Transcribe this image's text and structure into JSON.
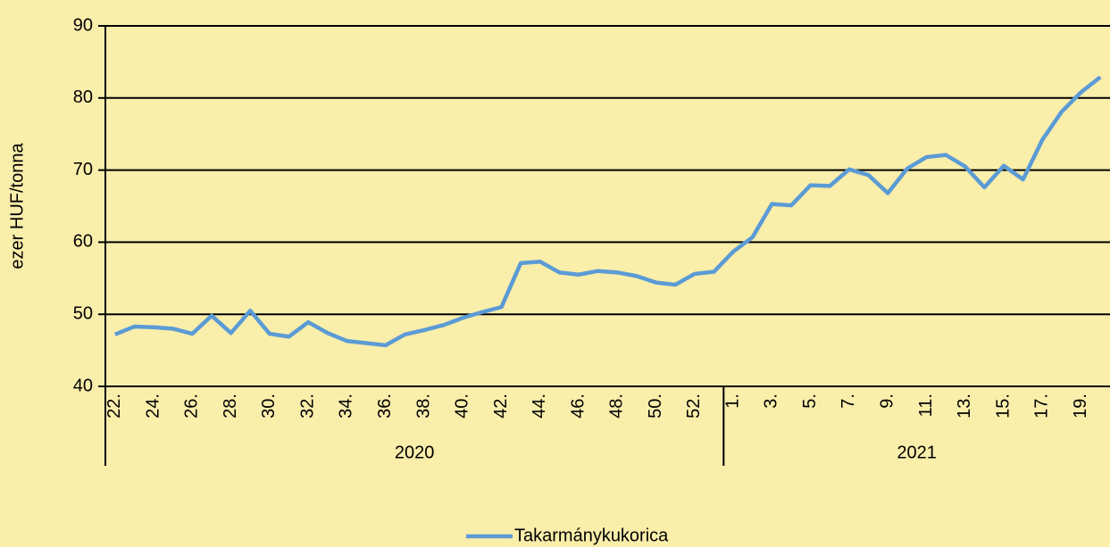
{
  "chart_data": {
    "type": "line",
    "y_label": "ezer HUF/tonna",
    "categories": [
      "22.",
      null,
      "24.",
      null,
      "26.",
      null,
      "28.",
      null,
      "30.",
      null,
      "32.",
      null,
      "34.",
      null,
      "36.",
      null,
      "38.",
      null,
      "40.",
      null,
      "42.",
      null,
      "44.",
      null,
      "46.",
      null,
      "48.",
      null,
      "50.",
      null,
      "52.",
      null,
      "1.",
      null,
      "3.",
      null,
      "5.",
      null,
      "7.",
      null,
      "9.",
      null,
      "11.",
      null,
      "13.",
      null,
      "15.",
      null,
      "17.",
      null,
      "19.",
      null
    ],
    "groups": [
      {
        "label": "2020",
        "count": 32
      },
      {
        "label": "2021",
        "count": 20
      }
    ],
    "series": [
      {
        "name": "Takarmánykukorica",
        "color": "#5b9bd5",
        "values": [
          47.2,
          48.3,
          48.2,
          48.0,
          47.3,
          49.8,
          47.4,
          50.5,
          47.3,
          46.9,
          48.9,
          47.4,
          46.3,
          46.0,
          45.7,
          47.2,
          47.8,
          48.5,
          49.5,
          50.3,
          51.0,
          57.1,
          57.3,
          55.8,
          55.5,
          56.0,
          55.8,
          55.3,
          54.4,
          54.1,
          55.6,
          55.9,
          58.7,
          60.7,
          65.3,
          65.1,
          67.9,
          67.8,
          70.1,
          69.3,
          66.8,
          70.2,
          71.8,
          72.1,
          70.5,
          67.6,
          70.6,
          68.7,
          74.2,
          78.1,
          80.8,
          82.9
        ]
      }
    ],
    "ylim": [
      40,
      90
    ],
    "yticks": [
      40,
      50,
      60,
      70,
      80,
      90
    ],
    "grid": true,
    "legend": "bottom"
  }
}
